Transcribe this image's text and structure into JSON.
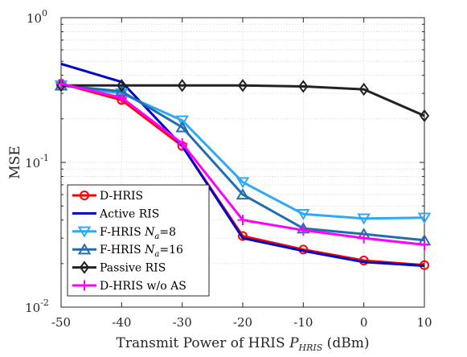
{
  "chart_data": {
    "type": "line",
    "title": "",
    "xlabel": "Transmit Power of HRIS P_HRIS (dBm)",
    "xlabel_main": "Transmit Power of HRIS ",
    "xlabel_sym": "P",
    "xlabel_sub": "HRIS",
    "xlabel_unit": " (dBm)",
    "ylabel": "MSE",
    "x": [
      -50,
      -40,
      -30,
      -20,
      -10,
      0,
      10
    ],
    "xlim": [
      -50,
      10
    ],
    "ylim": [
      0.01,
      1
    ],
    "yscale": "log",
    "grid": true,
    "legend_position": "bottom-left",
    "x_ticks": [
      "-50",
      "-40",
      "-30",
      "-20",
      "-10",
      "0",
      "10"
    ],
    "y_ticks": [
      {
        "base": "10",
        "exp": "-2",
        "value": 0.01
      },
      {
        "base": "10",
        "exp": "-1",
        "value": 0.1
      },
      {
        "base": "10",
        "exp": "0",
        "value": 1
      }
    ],
    "series": [
      {
        "name": "D-HRIS",
        "color": "#ff0000",
        "marker": "circle",
        "values": [
          0.35,
          0.27,
          0.13,
          0.031,
          0.025,
          0.021,
          0.0195
        ]
      },
      {
        "name": "Active RIS",
        "color": "#0000cc",
        "marker": "none",
        "values": [
          0.48,
          0.36,
          0.13,
          0.03,
          0.0245,
          0.0205,
          0.0193
        ]
      },
      {
        "name": "F-HRIS Na=8",
        "name_main": "F-HRIS ",
        "name_sym": "N",
        "name_sub": "a",
        "name_rest": "=8",
        "color": "#2fa9f5",
        "marker": "triangle-down",
        "values": [
          0.34,
          0.3,
          0.195,
          0.073,
          0.044,
          0.041,
          0.0415
        ]
      },
      {
        "name": "F-HRIS Na=16",
        "name_main": "F-HRIS ",
        "name_sym": "N",
        "name_sub": "a",
        "name_rest": "=16",
        "color": "#1f6fb0",
        "marker": "triangle-up",
        "values": [
          0.34,
          0.31,
          0.175,
          0.06,
          0.035,
          0.032,
          0.029
        ]
      },
      {
        "name": "Passive RIS",
        "color": "#222222",
        "marker": "diamond",
        "values": [
          0.34,
          0.34,
          0.34,
          0.34,
          0.335,
          0.32,
          0.21
        ]
      },
      {
        "name": "D-HRIS w/o AS",
        "color": "#ff00ff",
        "marker": "plus",
        "values": [
          0.35,
          0.28,
          0.135,
          0.04,
          0.034,
          0.03,
          0.027
        ]
      }
    ]
  }
}
